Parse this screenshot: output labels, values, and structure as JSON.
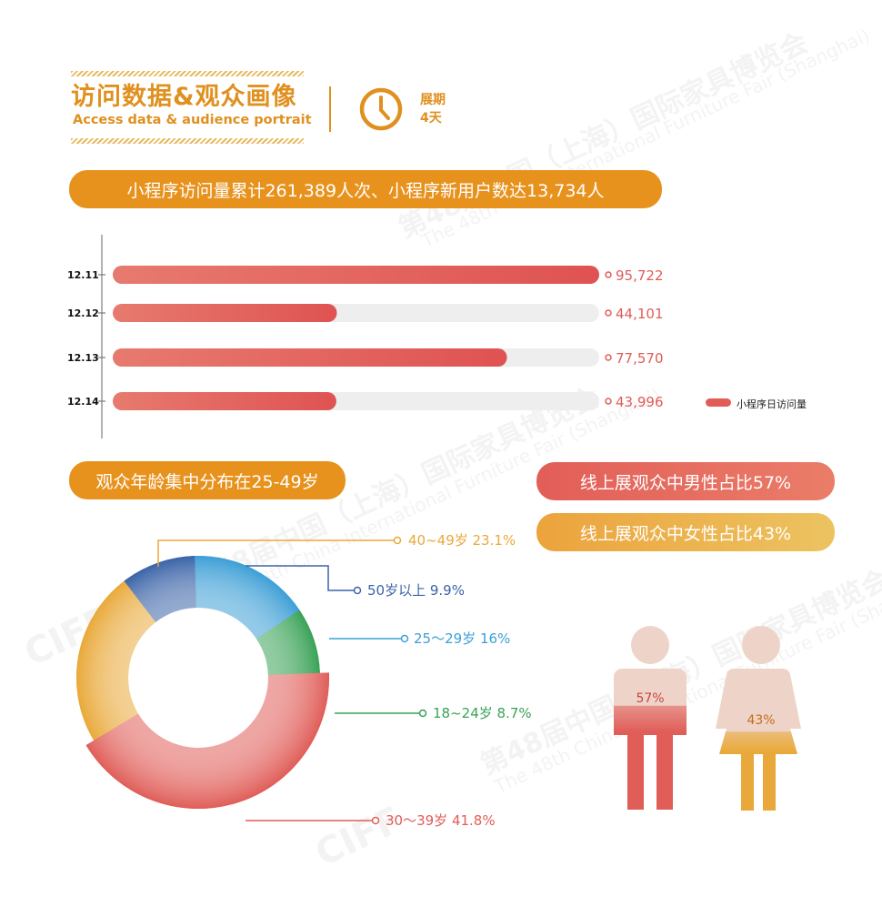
{
  "header": {
    "title_cn": "访问数据&观众画像",
    "title_en": "Access data & audience portrait",
    "duration_label": "展期",
    "duration_value": "4天",
    "clock_icon": "clock-icon"
  },
  "summary_banner": "小程序访问量累计261,389人次、小程序新用户数达13,734人",
  "age_banner": "观众年龄集中分布在25-49岁",
  "gender_banners": {
    "male": "线上展观众中男性占比57%",
    "female": "线上展观众中女性占比43%"
  },
  "watermarks": [
    "第48届中国（上海）国际家具博览会",
    "The 48th China International Furniture Fair (Shanghai)",
    "CIFF"
  ],
  "chart_data": [
    {
      "type": "bar",
      "orientation": "horizontal",
      "categories": [
        "12.11",
        "12.12",
        "12.13",
        "12.14"
      ],
      "values": [
        95722,
        44101,
        77570,
        43996
      ],
      "value_labels": [
        "95,722",
        "44,101",
        "77,570",
        "43,996"
      ],
      "xlim": [
        0,
        95722
      ],
      "legend": [
        "小程序日访问量"
      ],
      "legend_position": "bottom-right",
      "colors": {
        "bar": "#e05d58",
        "track": "#eeeeee"
      }
    },
    {
      "type": "pie",
      "style": "donut",
      "slices": [
        {
          "label": "40~49岁",
          "value": 23.1,
          "text": "40~49岁 23.1%",
          "color": "#e9a93a"
        },
        {
          "label": "50岁以上",
          "value": 9.9,
          "text": "50岁以上  9.9%",
          "color": "#3b64a8"
        },
        {
          "label": "25～29岁",
          "value": 16,
          "text": "25～29岁  16%",
          "color": "#3d9fd6"
        },
        {
          "label": "18~24岁",
          "value": 8.7,
          "text": "18~24岁  8.7%",
          "color": "#3aa257"
        },
        {
          "label": "30～39岁",
          "value": 41.8,
          "text": "30～39岁  41.8%",
          "color": "#e05d58"
        }
      ]
    },
    {
      "type": "pictograph",
      "items": [
        {
          "label": "57%",
          "value": 57,
          "figure": "male",
          "fill_color": "#e05d58",
          "base_color": "#eed4c8"
        },
        {
          "label": "43%",
          "value": 43,
          "figure": "female",
          "fill_color": "#e9a93a",
          "base_color": "#eed4c8"
        }
      ]
    }
  ]
}
